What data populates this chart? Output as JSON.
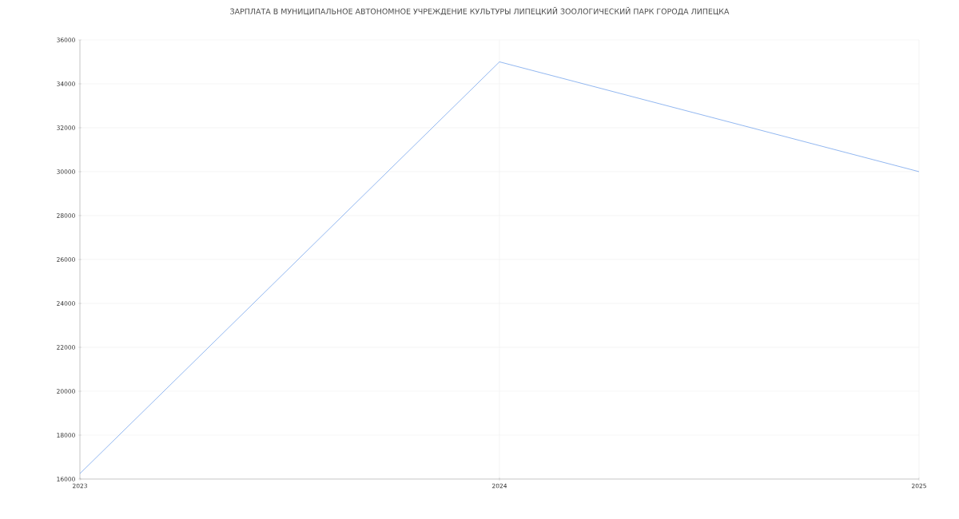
{
  "chart_data": {
    "type": "line",
    "title": "ЗАРПЛАТА В МУНИЦИПАЛЬНОЕ АВТОНОМНОЕ УЧРЕЖДЕНИЕ КУЛЬТУРЫ ЛИПЕЦКИЙ ЗООЛОГИЧЕСКИЙ ПАРК ГОРОДА ЛИПЕЦКА",
    "x": [
      2023,
      2024,
      2025
    ],
    "series": [
      {
        "color": "#6d9eeb",
        "values": [
          16250,
          35000,
          30000
        ]
      }
    ],
    "xlim": [
      2023,
      2025
    ],
    "xticks": [
      2023,
      2024,
      2025
    ],
    "ylim": [
      16000,
      36000
    ],
    "yticks": [
      16000,
      18000,
      20000,
      22000,
      24000,
      26000,
      28000,
      30000,
      32000,
      34000,
      36000
    ],
    "grid": true,
    "marker": "none",
    "line_style": "solid"
  }
}
